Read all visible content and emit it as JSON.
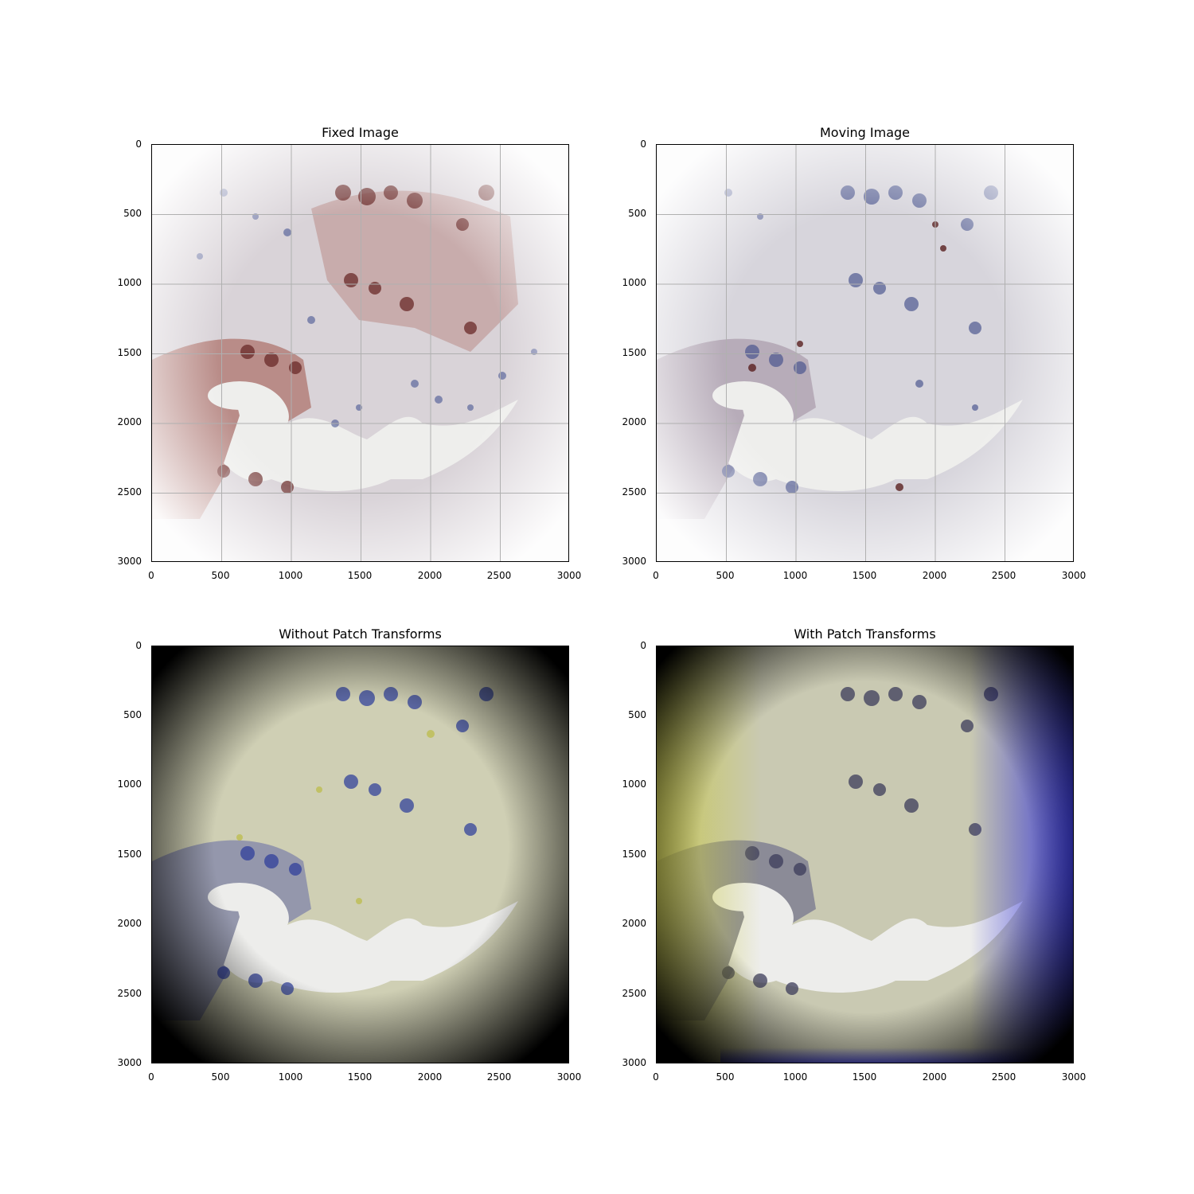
{
  "figure": {
    "panels": [
      {
        "id": "fixed",
        "title": "Fixed Image",
        "mode": "he-stain-red"
      },
      {
        "id": "moving",
        "title": "Moving Image",
        "mode": "he-stain-blue"
      },
      {
        "id": "without",
        "title": "Without Patch Transforms",
        "mode": "overlay-dark"
      },
      {
        "id": "with",
        "title": "With Patch Transforms",
        "mode": "overlay-dark-blue-yellow"
      }
    ],
    "axis": {
      "xticks": [
        "0",
        "500",
        "1000",
        "1500",
        "2000",
        "2500",
        "3000"
      ],
      "yticks": [
        "0",
        "500",
        "1000",
        "1500",
        "2000",
        "2500",
        "3000"
      ],
      "xlim": [
        0,
        3000
      ],
      "ylim": [
        0,
        3000
      ],
      "grid": true
    },
    "colors": {
      "grid": "#b0b0b0",
      "tissue_bg_light": "#e6e3e6",
      "nuclei_blue": "#3a4a8c",
      "stain_brown": "#7a3a34",
      "overlay_yellow": "#bfbf2a",
      "overlay_blue": "#2a2ad8"
    }
  }
}
